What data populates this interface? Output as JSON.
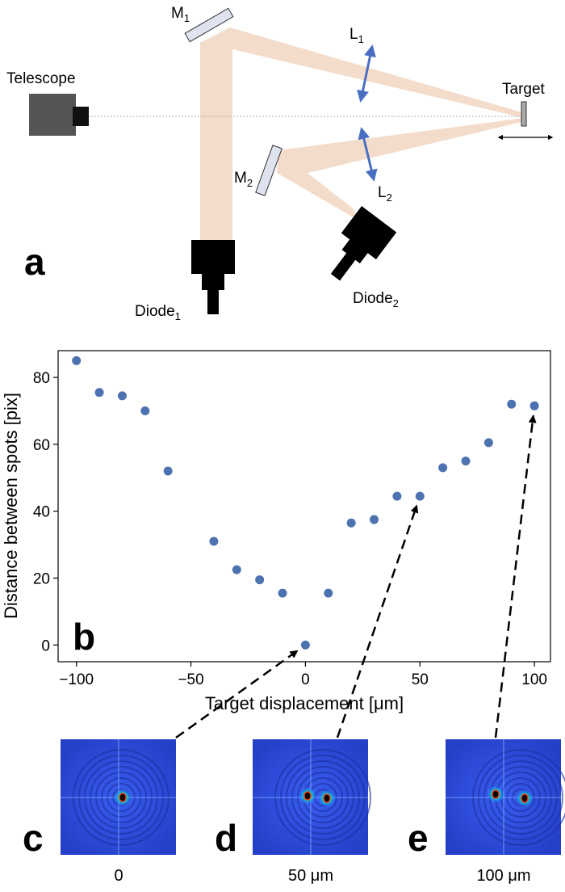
{
  "schematic": {
    "panel_label": "a",
    "telescope": "Telescope",
    "target": "Target",
    "mirror1": {
      "main": "M",
      "sub": "1"
    },
    "mirror2": {
      "main": "M",
      "sub": "2"
    },
    "lens1": {
      "main": "L",
      "sub": "1"
    },
    "lens2": {
      "main": "L",
      "sub": "2"
    },
    "diode1": {
      "main": "Diode",
      "sub": "1"
    },
    "diode2": {
      "main": "Diode",
      "sub": "2"
    },
    "colors": {
      "beam": "#f4dccb",
      "lens": "#4a6fc2",
      "mirror_fill": "#dfe3f0",
      "telescope_body": "#555555"
    }
  },
  "chart_data": {
    "type": "scatter",
    "panel_label": "b",
    "xlabel": "Target displacement [μm]",
    "ylabel": "Distance between spots [pix]",
    "xlim": [
      -108,
      107
    ],
    "ylim": [
      -5,
      88
    ],
    "xticks": [
      -100,
      -50,
      0,
      50,
      100
    ],
    "xtick_labels": [
      "−100",
      "−50",
      "0",
      "50",
      "100"
    ],
    "yticks": [
      0,
      20,
      40,
      60,
      80
    ],
    "grid": false,
    "color": "#4c72b0",
    "x": [
      -100,
      -90,
      -80,
      -70,
      -60,
      -40,
      -30,
      -20,
      -10,
      0,
      10,
      20,
      30,
      40,
      50,
      60,
      70,
      80,
      90,
      100
    ],
    "y": [
      85,
      75.5,
      74.5,
      70,
      52,
      31,
      22.5,
      19.5,
      15.5,
      0,
      15.5,
      36.5,
      37.5,
      44.5,
      44.5,
      53,
      55,
      60.5,
      72,
      71.5
    ]
  },
  "insets": [
    {
      "panel_label": "c",
      "caption": "0",
      "x_value": 0
    },
    {
      "panel_label": "d",
      "caption": "50 μm",
      "x_value": 50
    },
    {
      "panel_label": "e",
      "caption": "100 μm",
      "x_value": 100
    }
  ]
}
